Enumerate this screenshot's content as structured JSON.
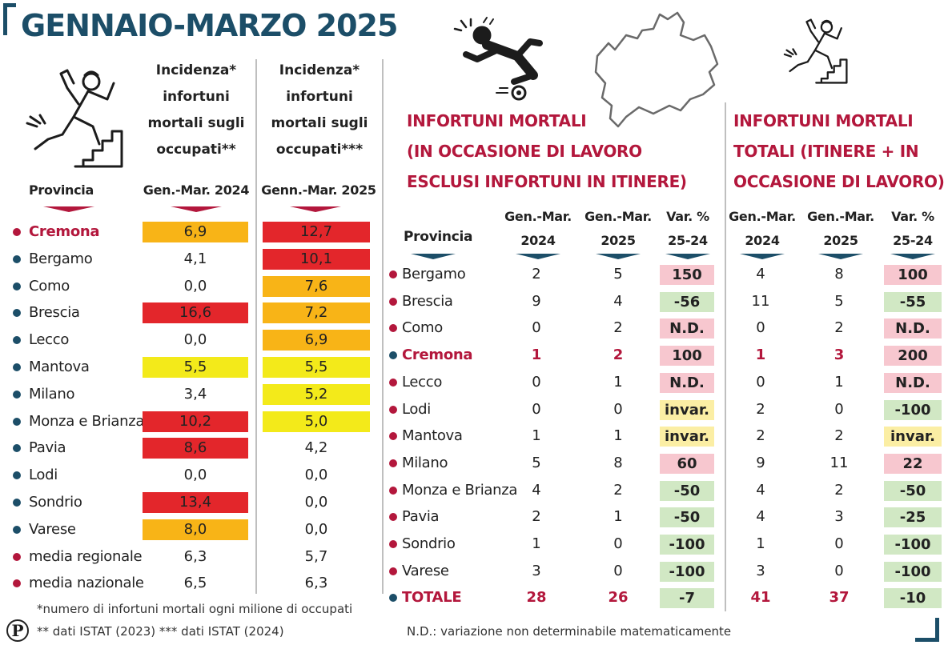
{
  "title": "GENNAIO-MARZO 2025",
  "colors": {
    "red_cell": "#e3262b",
    "orange_cell": "#f8b417",
    "yellow_cell": "#f3ea1a",
    "pink_cell": "#f7c7cf",
    "green_cell": "#d1e8c4",
    "light_yellow_cell": "#fbeea4",
    "accent_red": "#b3173c",
    "accent_blue": "#1c4e68"
  },
  "left_table": {
    "province_header": "Provincia",
    "col_title_2024": [
      "Incidenza*",
      "infortuni",
      "mortali sugli",
      "occupati**"
    ],
    "col_title_2025": [
      "Incidenza*",
      "infortuni",
      "mortali sugli",
      "occupati***"
    ],
    "period_2024": "Gen.-Mar. 2024",
    "period_2025": "Genn.-Mar. 2025"
  },
  "right_section_1": {
    "title_lines": [
      "INFORTUNI MORTALI",
      "(IN OCCASIONE DI LAVORO",
      "ESCLUSI INFORTUNI IN ITINERE)"
    ],
    "col_a": [
      "Gen.-Mar.",
      "2024"
    ],
    "col_b": [
      "Gen.-Mar.",
      "2025"
    ],
    "col_c": [
      "Var. %",
      "25-24"
    ]
  },
  "right_section_2": {
    "title_lines": [
      "INFORTUNI MORTALI",
      "TOTALI (ITINERE + IN",
      "OCCASIONE DI LAVORO)"
    ],
    "col_a": [
      "Gen.-Mar.",
      "2024"
    ],
    "col_b": [
      "Gen.-Mar.",
      "2025"
    ],
    "col_c": [
      "Var. %",
      "25-24"
    ]
  },
  "right_table": {
    "province_header": "Provincia"
  },
  "footnotes": {
    "note1": "*numero di infortuni mortali ogni milione di occupati",
    "note2": "** dati ISTAT (2023)  *** dati ISTAT (2024)",
    "note_nd": "N.D.: variazione non determinabile matematicamente",
    "logo_letter": "P"
  },
  "icons": {
    "left_header": "worker-falling-from-stairs-icon",
    "middle": "worker-slipping-icon",
    "map": "lombardy-map-icon",
    "right_header": "worker-falling-from-stairs-icon"
  },
  "chart_data": [
    {
      "type": "table",
      "columns": [
        "Provincia",
        "Gen.-Mar. 2024",
        "Genn.-Mar. 2025"
      ],
      "rows": [
        {
          "name": "Cremona",
          "v2024": "6,9",
          "v2025": "12,7",
          "dot": "red",
          "highlight": true,
          "c2024": "orange",
          "c2025": "red"
        },
        {
          "name": "Bergamo",
          "v2024": "4,1",
          "v2025": "10,1",
          "dot": "blue",
          "highlight": false,
          "c2024": "none",
          "c2025": "red"
        },
        {
          "name": "Como",
          "v2024": "0,0",
          "v2025": "7,6",
          "dot": "blue",
          "highlight": false,
          "c2024": "none",
          "c2025": "orange"
        },
        {
          "name": "Brescia",
          "v2024": "16,6",
          "v2025": "7,2",
          "dot": "blue",
          "highlight": false,
          "c2024": "red",
          "c2025": "orange"
        },
        {
          "name": "Lecco",
          "v2024": "0,0",
          "v2025": "6,9",
          "dot": "blue",
          "highlight": false,
          "c2024": "none",
          "c2025": "orange"
        },
        {
          "name": "Mantova",
          "v2024": "5,5",
          "v2025": "5,5",
          "dot": "blue",
          "highlight": false,
          "c2024": "yellow",
          "c2025": "yellow"
        },
        {
          "name": "Milano",
          "v2024": "3,4",
          "v2025": "5,2",
          "dot": "blue",
          "highlight": false,
          "c2024": "none",
          "c2025": "yellow"
        },
        {
          "name": "Monza e Brianza",
          "v2024": "10,2",
          "v2025": "5,0",
          "dot": "blue",
          "highlight": false,
          "c2024": "red",
          "c2025": "yellow"
        },
        {
          "name": "Pavia",
          "v2024": "8,6",
          "v2025": "4,2",
          "dot": "blue",
          "highlight": false,
          "c2024": "red",
          "c2025": "none"
        },
        {
          "name": "Lodi",
          "v2024": "0,0",
          "v2025": "0,0",
          "dot": "blue",
          "highlight": false,
          "c2024": "none",
          "c2025": "none"
        },
        {
          "name": "Sondrio",
          "v2024": "13,4",
          "v2025": "0,0",
          "dot": "blue",
          "highlight": false,
          "c2024": "red",
          "c2025": "none"
        },
        {
          "name": "Varese",
          "v2024": "8,0",
          "v2025": "0,0",
          "dot": "blue",
          "highlight": false,
          "c2024": "orange",
          "c2025": "none"
        },
        {
          "name": "media regionale",
          "v2024": "6,3",
          "v2025": "5,7",
          "dot": "red",
          "highlight": false,
          "c2024": "none",
          "c2025": "none"
        },
        {
          "name": "media nazionale",
          "v2024": "6,5",
          "v2025": "6,3",
          "dot": "red",
          "highlight": false,
          "c2024": "none",
          "c2025": "none"
        }
      ]
    },
    {
      "type": "table",
      "columns": [
        "Provincia",
        "Gen.-Mar. 2024",
        "Gen.-Mar. 2025",
        "Var. % 25-24",
        "Gen.-Mar. 2024",
        "Gen.-Mar. 2025",
        "Var. % 25-24"
      ],
      "rows": [
        {
          "name": "Bergamo",
          "a1": "2",
          "a2": "5",
          "av": "150",
          "avc": "pink",
          "b1": "4",
          "b2": "8",
          "bv": "100",
          "bvc": "pink",
          "dot": "red",
          "highlight": false
        },
        {
          "name": "Brescia",
          "a1": "9",
          "a2": "4",
          "av": "-56",
          "avc": "green",
          "b1": "11",
          "b2": "5",
          "bv": "-55",
          "bvc": "green",
          "dot": "red",
          "highlight": false
        },
        {
          "name": "Como",
          "a1": "0",
          "a2": "2",
          "av": "N.D.",
          "avc": "pink",
          "b1": "0",
          "b2": "2",
          "bv": "N.D.",
          "bvc": "pink",
          "dot": "red",
          "highlight": false
        },
        {
          "name": "Cremona",
          "a1": "1",
          "a2": "2",
          "av": "100",
          "avc": "pink",
          "b1": "1",
          "b2": "3",
          "bv": "200",
          "bvc": "pink",
          "dot": "blue",
          "highlight": true
        },
        {
          "name": "Lecco",
          "a1": "0",
          "a2": "1",
          "av": "N.D.",
          "avc": "pink",
          "b1": "0",
          "b2": "1",
          "bv": "N.D.",
          "bvc": "pink",
          "dot": "red",
          "highlight": false
        },
        {
          "name": "Lodi",
          "a1": "0",
          "a2": "0",
          "av": "invar.",
          "avc": "yellow",
          "b1": "2",
          "b2": "0",
          "bv": "-100",
          "bvc": "green",
          "dot": "red",
          "highlight": false
        },
        {
          "name": "Mantova",
          "a1": "1",
          "a2": "1",
          "av": "invar.",
          "avc": "yellow",
          "b1": "2",
          "b2": "2",
          "bv": "invar.",
          "bvc": "yellow",
          "dot": "red",
          "highlight": false
        },
        {
          "name": "Milano",
          "a1": "5",
          "a2": "8",
          "av": "60",
          "avc": "pink",
          "b1": "9",
          "b2": "11",
          "bv": "22",
          "bvc": "pink",
          "dot": "red",
          "highlight": false
        },
        {
          "name": "Monza e Brianza",
          "a1": "4",
          "a2": "2",
          "av": "-50",
          "avc": "green",
          "b1": "4",
          "b2": "2",
          "bv": "-50",
          "bvc": "green",
          "dot": "red",
          "highlight": false
        },
        {
          "name": "Pavia",
          "a1": "2",
          "a2": "1",
          "av": "-50",
          "avc": "green",
          "b1": "4",
          "b2": "3",
          "bv": "-25",
          "bvc": "green",
          "dot": "red",
          "highlight": false
        },
        {
          "name": "Sondrio",
          "a1": "1",
          "a2": "0",
          "av": "-100",
          "avc": "green",
          "b1": "1",
          "b2": "0",
          "bv": "-100",
          "bvc": "green",
          "dot": "red",
          "highlight": false
        },
        {
          "name": "Varese",
          "a1": "3",
          "a2": "0",
          "av": "-100",
          "avc": "green",
          "b1": "3",
          "b2": "0",
          "bv": "-100",
          "bvc": "green",
          "dot": "red",
          "highlight": false
        },
        {
          "name": "TOTALE",
          "a1": "28",
          "a2": "26",
          "av": "-7",
          "avc": "green",
          "b1": "41",
          "b2": "37",
          "bv": "-10",
          "bvc": "green",
          "dot": "blue",
          "highlight": true
        }
      ]
    }
  ]
}
